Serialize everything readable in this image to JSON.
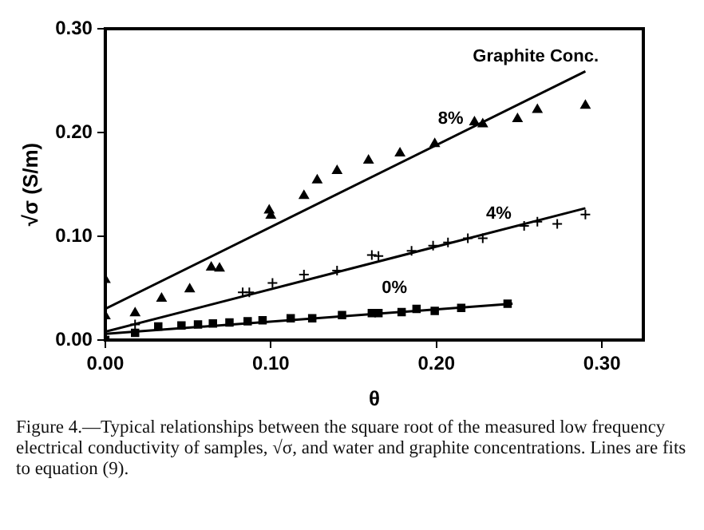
{
  "chart_data": {
    "type": "scatter",
    "xlabel": "θ",
    "ylabel": "√σ (S/m)",
    "legend_title": "Graphite Conc.",
    "xlim": [
      0,
      0.325
    ],
    "xticks": [
      {
        "value": 0,
        "label": "0.00"
      },
      {
        "value": 0.1,
        "label": "0.10"
      },
      {
        "value": 0.2,
        "label": "0.20"
      },
      {
        "value": 0.3,
        "label": "0.30"
      }
    ],
    "ylim": [
      0,
      0.3
    ],
    "yticks": [
      {
        "value": 0,
        "label": "0.00"
      },
      {
        "value": 0.1,
        "label": "0.10"
      },
      {
        "value": 0.2,
        "label": "0.20"
      },
      {
        "value": 0.3,
        "label": "0.30"
      }
    ],
    "grid": false,
    "legend": false,
    "series": [
      {
        "name": "8%",
        "type": "scatter",
        "marker": "triangle",
        "color": "#000000",
        "x": [
          0,
          0,
          0.018,
          0.034,
          0.051,
          0.064,
          0.069,
          0.099,
          0.1,
          0.12,
          0.128,
          0.14,
          0.159,
          0.178,
          0.199,
          0.223,
          0.228,
          0.249,
          0.261,
          0.29
        ],
        "values": [
          0.058,
          0.023,
          0.026,
          0.04,
          0.049,
          0.07,
          0.069,
          0.125,
          0.12,
          0.139,
          0.154,
          0.163,
          0.173,
          0.18,
          0.189,
          0.21,
          0.208,
          0.213,
          0.222,
          0.226
        ]
      },
      {
        "name": "4%",
        "type": "scatter",
        "marker": "cross",
        "color": "#000000",
        "x": [
          0.018,
          0.083,
          0.087,
          0.101,
          0.12,
          0.14,
          0.161,
          0.165,
          0.185,
          0.198,
          0.207,
          0.219,
          0.228,
          0.253,
          0.261,
          0.273,
          0.29
        ],
        "values": [
          0.015,
          0.046,
          0.046,
          0.055,
          0.063,
          0.067,
          0.082,
          0.081,
          0.086,
          0.091,
          0.094,
          0.098,
          0.098,
          0.11,
          0.114,
          0.112,
          0.121
        ]
      },
      {
        "name": "0%",
        "type": "scatter",
        "marker": "square",
        "color": "#000000",
        "x": [
          0,
          0.018,
          0.032,
          0.046,
          0.056,
          0.065,
          0.075,
          0.086,
          0.095,
          0.112,
          0.125,
          0.143,
          0.161,
          0.165,
          0.179,
          0.188,
          0.199,
          0.215,
          0.243
        ],
        "values": [
          0,
          0.007,
          0.013,
          0.014,
          0.015,
          0.016,
          0.017,
          0.018,
          0.019,
          0.021,
          0.021,
          0.024,
          0.026,
          0.026,
          0.027,
          0.03,
          0.028,
          0.031,
          0.035
        ]
      },
      {
        "type": "line",
        "marker": "none",
        "line_style": "solid",
        "color": "#000000",
        "x": [
          0,
          0.29
        ],
        "values": [
          0.03,
          0.259
        ]
      },
      {
        "type": "line",
        "marker": "none",
        "line_style": "solid",
        "color": "#000000",
        "x": [
          0,
          0.29
        ],
        "values": [
          0.008,
          0.127
        ]
      },
      {
        "type": "line",
        "marker": "none",
        "line_style": "solid",
        "color": "#000000",
        "x": [
          0,
          0.246
        ],
        "values": [
          0.006,
          0.035
        ]
      }
    ],
    "annotations": [
      "Figure 4.—Typical relationships between the square root of the measured low frequency electrical conductivity of samples, √σ, and water and graphite concentrations. Lines are fits to equation (9)."
    ]
  }
}
